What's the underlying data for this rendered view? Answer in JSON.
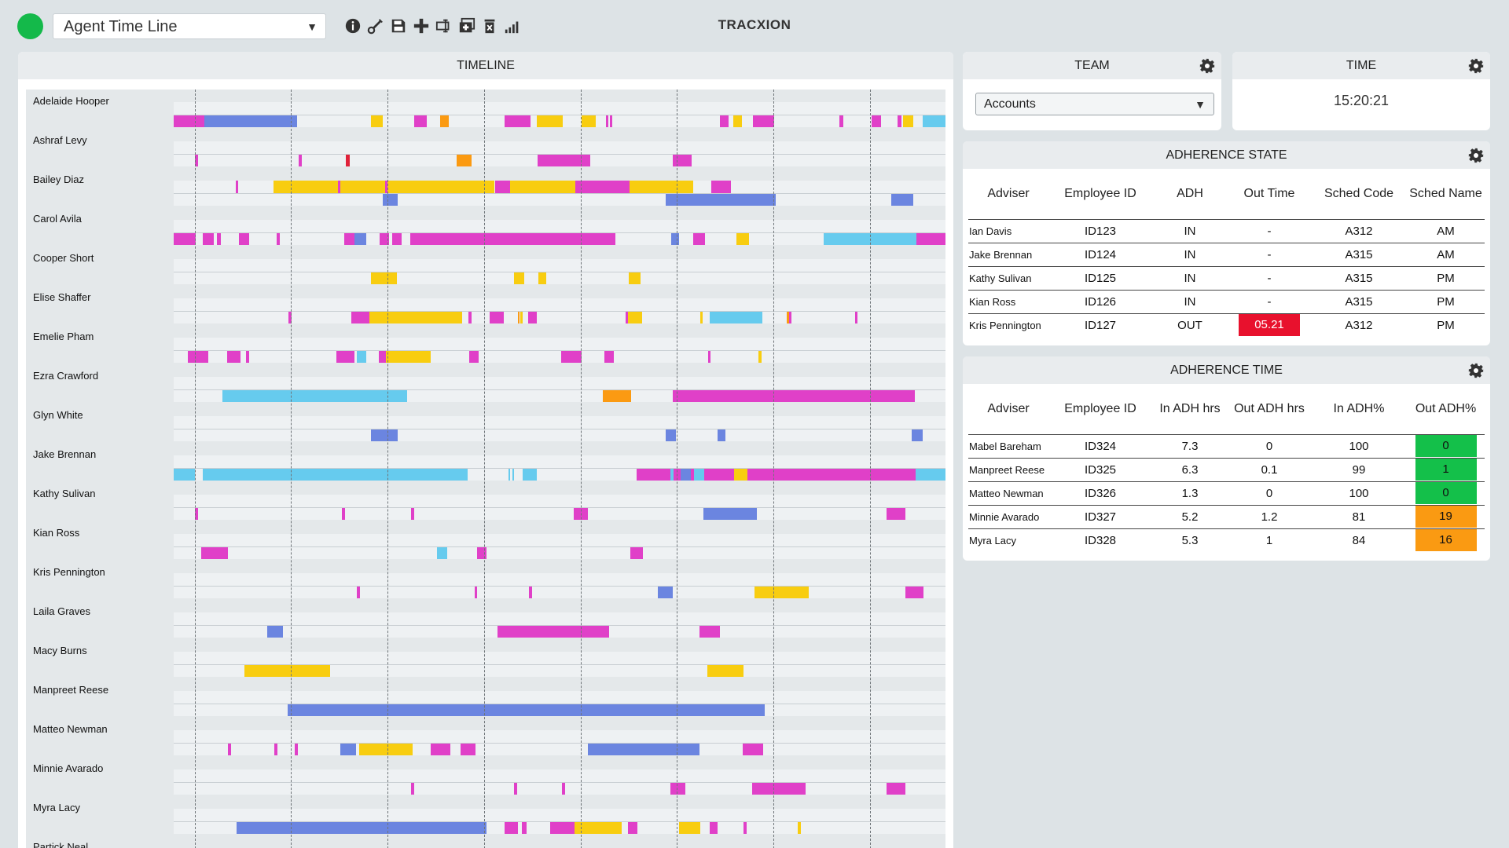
{
  "toolbar": {
    "view_selected": "Agent Time Line",
    "icons": [
      "info-icon",
      "edit-icon",
      "save-icon",
      "add-icon",
      "rename-icon",
      "duplicate-icon",
      "delete-icon",
      "signal-icon"
    ]
  },
  "brand": "TRACXION",
  "colors": {
    "m": "#e040c8",
    "b": "#6b85e0",
    "y": "#f8cd10",
    "o": "#fb9a12",
    "c": "#66cbee",
    "r": "#e0223a",
    "green_status": "#14b94a",
    "adh_red": "#e8112d",
    "adh_green": "#14c04a",
    "adh_orange": "#fa9a12"
  },
  "timeline": {
    "title": "TIMELINE",
    "agents": [
      {
        "name": "Adelaide Hooper",
        "t1": [],
        "t2": [
          [
            0,
            0.04,
            "m"
          ],
          [
            0.04,
            0.16,
            "b"
          ],
          [
            0.256,
            0.271,
            "y"
          ],
          [
            0.312,
            0.328,
            "m"
          ],
          [
            0.345,
            0.356,
            "o"
          ],
          [
            0.429,
            0.462,
            "m"
          ],
          [
            0.47,
            0.504,
            "y"
          ],
          [
            0.529,
            0.547,
            "y"
          ],
          [
            0.56,
            0.563,
            "m"
          ],
          [
            0.565,
            0.568,
            "m"
          ],
          [
            0.708,
            0.719,
            "m"
          ],
          [
            0.725,
            0.736,
            "y"
          ],
          [
            0.75,
            0.778,
            "m"
          ],
          [
            0.863,
            0.868,
            "m"
          ],
          [
            0.904,
            0.916,
            "m"
          ],
          [
            0.938,
            0.943,
            "m"
          ],
          [
            0.945,
            0.958,
            "y"
          ],
          [
            0.97,
            1.0,
            "c"
          ]
        ]
      },
      {
        "name": "Ashraf Levy",
        "t1": [],
        "t2": [
          [
            0.028,
            0.032,
            "m"
          ],
          [
            0.162,
            0.166,
            "m"
          ],
          [
            0.223,
            0.228,
            "r"
          ],
          [
            0.367,
            0.386,
            "o"
          ],
          [
            0.471,
            0.54,
            "m"
          ],
          [
            0.647,
            0.671,
            "m"
          ]
        ]
      },
      {
        "name": "Bailey Diaz",
        "t1": [
          [
            0.08,
            0.084,
            "m"
          ],
          [
            0.129,
            0.213,
            "y"
          ],
          [
            0.213,
            0.216,
            "m"
          ],
          [
            0.216,
            0.274,
            "y"
          ],
          [
            0.274,
            0.277,
            "m"
          ],
          [
            0.277,
            0.416,
            "y"
          ],
          [
            0.416,
            0.436,
            "m"
          ],
          [
            0.436,
            0.52,
            "y"
          ],
          [
            0.52,
            0.591,
            "m"
          ],
          [
            0.591,
            0.673,
            "y"
          ],
          [
            0.697,
            0.722,
            "m"
          ]
        ],
        "t2": [
          [
            0.271,
            0.29,
            "b"
          ],
          [
            0.637,
            0.78,
            "b"
          ],
          [
            0.93,
            0.958,
            "b"
          ]
        ]
      },
      {
        "name": "Carol Avila",
        "t1": [],
        "t2": [
          [
            0,
            0.029,
            "m"
          ],
          [
            0.038,
            0.052,
            "m"
          ],
          [
            0.056,
            0.061,
            "m"
          ],
          [
            0.085,
            0.098,
            "m"
          ],
          [
            0.133,
            0.137,
            "m"
          ],
          [
            0.221,
            0.234,
            "m"
          ],
          [
            0.234,
            0.25,
            "b"
          ],
          [
            0.267,
            0.279,
            "m"
          ],
          [
            0.283,
            0.295,
            "m"
          ],
          [
            0.307,
            0.572,
            "m"
          ],
          [
            0.645,
            0.655,
            "b"
          ],
          [
            0.673,
            0.688,
            "m"
          ],
          [
            0.729,
            0.745,
            "y"
          ],
          [
            0.842,
            0.962,
            "c"
          ],
          [
            0.962,
            1.0,
            "m"
          ]
        ]
      },
      {
        "name": "Cooper Short",
        "t1": [],
        "t2": [
          [
            0.256,
            0.289,
            "y"
          ],
          [
            0.441,
            0.454,
            "y"
          ],
          [
            0.473,
            0.483,
            "y"
          ],
          [
            0.59,
            0.605,
            "y"
          ]
        ]
      },
      {
        "name": "Elise Shaffer",
        "t1": [],
        "t2": [
          [
            0.149,
            0.153,
            "m"
          ],
          [
            0.23,
            0.254,
            "m"
          ],
          [
            0.254,
            0.374,
            "y"
          ],
          [
            0.382,
            0.386,
            "m"
          ],
          [
            0.409,
            0.428,
            "m"
          ],
          [
            0.446,
            0.448,
            "o"
          ],
          [
            0.449,
            0.452,
            "y"
          ],
          [
            0.459,
            0.47,
            "m"
          ],
          [
            0.586,
            0.589,
            "m"
          ],
          [
            0.589,
            0.607,
            "y"
          ],
          [
            0.682,
            0.685,
            "y"
          ],
          [
            0.695,
            0.763,
            "c"
          ],
          [
            0.794,
            0.797,
            "o"
          ],
          [
            0.797,
            0.8,
            "m"
          ],
          [
            0.883,
            0.886,
            "m"
          ]
        ]
      },
      {
        "name": "Emelie Pham",
        "t1": [],
        "t2": [
          [
            0.018,
            0.045,
            "m"
          ],
          [
            0.069,
            0.087,
            "m"
          ],
          [
            0.094,
            0.098,
            "m"
          ],
          [
            0.211,
            0.234,
            "m"
          ],
          [
            0.237,
            0.249,
            "c"
          ],
          [
            0.266,
            0.275,
            "m"
          ],
          [
            0.275,
            0.333,
            "y"
          ],
          [
            0.383,
            0.395,
            "m"
          ],
          [
            0.502,
            0.529,
            "m"
          ],
          [
            0.558,
            0.57,
            "m"
          ],
          [
            0.692,
            0.696,
            "m"
          ],
          [
            0.758,
            0.762,
            "y"
          ]
        ]
      },
      {
        "name": "Ezra Crawford",
        "t1": [],
        "t2": [
          [
            0.063,
            0.302,
            "c"
          ],
          [
            0.556,
            0.593,
            "o"
          ],
          [
            0.647,
            0.96,
            "m"
          ]
        ]
      },
      {
        "name": "Glyn White",
        "t1": [],
        "t2": [
          [
            0.256,
            0.29,
            "b"
          ],
          [
            0.637,
            0.651,
            "b"
          ],
          [
            0.705,
            0.715,
            "b"
          ],
          [
            0.956,
            0.97,
            "b"
          ]
        ]
      },
      {
        "name": "Jake Brennan",
        "t1": [],
        "t2": [
          [
            0,
            0.028,
            "c"
          ],
          [
            0.038,
            0.381,
            "c"
          ],
          [
            0.434,
            0.436,
            "c"
          ],
          [
            0.439,
            0.441,
            "c"
          ],
          [
            0.452,
            0.47,
            "c"
          ],
          [
            0.6,
            0.644,
            "m"
          ],
          [
            0.644,
            0.648,
            "c"
          ],
          [
            0.648,
            0.657,
            "m"
          ],
          [
            0.657,
            0.67,
            "b"
          ],
          [
            0.67,
            0.674,
            "m"
          ],
          [
            0.674,
            0.687,
            "c"
          ],
          [
            0.687,
            0.726,
            "m"
          ],
          [
            0.726,
            0.743,
            "y"
          ],
          [
            0.743,
            0.961,
            "m"
          ],
          [
            0.961,
            1.0,
            "c"
          ]
        ]
      },
      {
        "name": "Kathy Sulivan",
        "t1": [],
        "t2": [
          [
            0.028,
            0.032,
            "m"
          ],
          [
            0.218,
            0.222,
            "m"
          ],
          [
            0.308,
            0.312,
            "m"
          ],
          [
            0.518,
            0.537,
            "m"
          ],
          [
            0.686,
            0.756,
            "b"
          ],
          [
            0.924,
            0.948,
            "m"
          ]
        ]
      },
      {
        "name": "Kian Ross",
        "t1": [],
        "t2": [
          [
            0.036,
            0.07,
            "m"
          ],
          [
            0.341,
            0.354,
            "c"
          ],
          [
            0.393,
            0.405,
            "m"
          ],
          [
            0.592,
            0.608,
            "m"
          ]
        ]
      },
      {
        "name": "Kris Pennington",
        "t1": [],
        "t2": [
          [
            0.237,
            0.241,
            "m"
          ],
          [
            0.39,
            0.393,
            "m"
          ],
          [
            0.46,
            0.464,
            "m"
          ],
          [
            0.627,
            0.647,
            "b"
          ],
          [
            0.753,
            0.823,
            "y"
          ],
          [
            0.948,
            0.972,
            "m"
          ]
        ]
      },
      {
        "name": "Laila Graves",
        "t1": [],
        "t2": [
          [
            0.121,
            0.142,
            "b"
          ],
          [
            0.42,
            0.564,
            "m"
          ],
          [
            0.681,
            0.708,
            "m"
          ]
        ]
      },
      {
        "name": "Macy Burns",
        "t1": [],
        "t2": [
          [
            0.092,
            0.203,
            "y"
          ],
          [
            0.691,
            0.738,
            "y"
          ]
        ]
      },
      {
        "name": "Manpreet Reese",
        "t1": [],
        "t2": [
          [
            0.148,
            0.766,
            "b"
          ]
        ]
      },
      {
        "name": "Matteo Newman",
        "t1": [],
        "t2": [
          [
            0.07,
            0.074,
            "m"
          ],
          [
            0.13,
            0.134,
            "m"
          ],
          [
            0.157,
            0.161,
            "m"
          ],
          [
            0.216,
            0.236,
            "b"
          ],
          [
            0.24,
            0.31,
            "y"
          ],
          [
            0.333,
            0.358,
            "m"
          ],
          [
            0.372,
            0.391,
            "m"
          ],
          [
            0.537,
            0.681,
            "b"
          ],
          [
            0.737,
            0.764,
            "m"
          ]
        ]
      },
      {
        "name": "Minnie Avarado",
        "t1": [],
        "t2": [
          [
            0.308,
            0.312,
            "m"
          ],
          [
            0.441,
            0.445,
            "m"
          ],
          [
            0.503,
            0.507,
            "m"
          ],
          [
            0.644,
            0.663,
            "m"
          ],
          [
            0.749,
            0.819,
            "m"
          ],
          [
            0.924,
            0.948,
            "m"
          ]
        ]
      },
      {
        "name": "Myra Lacy",
        "t1": [],
        "t2": [
          [
            0.081,
            0.405,
            "b"
          ],
          [
            0.429,
            0.446,
            "m"
          ],
          [
            0.451,
            0.457,
            "m"
          ],
          [
            0.488,
            0.519,
            "m"
          ],
          [
            0.519,
            0.58,
            "y"
          ],
          [
            0.589,
            0.601,
            "m"
          ],
          [
            0.655,
            0.682,
            "y"
          ],
          [
            0.694,
            0.705,
            "m"
          ],
          [
            0.738,
            0.742,
            "m"
          ],
          [
            0.809,
            0.813,
            "y"
          ]
        ]
      },
      {
        "name": "Partick Neal",
        "t1": [],
        "t2": []
      }
    ]
  },
  "team": {
    "title": "TEAM",
    "selected": "Accounts"
  },
  "time": {
    "title": "TIME",
    "clock": "15:20:21"
  },
  "adherence_state": {
    "title": "ADHERENCE STATE",
    "headers": [
      "Adviser",
      "Employee ID",
      "ADH",
      "Out Time",
      "Sched Code",
      "Sched Name"
    ],
    "rows": [
      {
        "adviser": "Ian Davis",
        "id": "ID123",
        "adh": "IN",
        "out_time": "-",
        "code": "A312",
        "name": "AM",
        "flag": ""
      },
      {
        "adviser": "Jake Brennan",
        "id": "ID124",
        "adh": "IN",
        "out_time": "-",
        "code": "A315",
        "name": "AM",
        "flag": ""
      },
      {
        "adviser": "Kathy Sulivan",
        "id": "ID125",
        "adh": "IN",
        "out_time": "-",
        "code": "A315",
        "name": "PM",
        "flag": ""
      },
      {
        "adviser": "Kian Ross",
        "id": "ID126",
        "adh": "IN",
        "out_time": "-",
        "code": "A315",
        "name": "PM",
        "flag": ""
      },
      {
        "adviser": "Kris Pennington",
        "id": "ID127",
        "adh": "OUT",
        "out_time": "05.21",
        "code": "A312",
        "name": "PM",
        "flag": "red"
      }
    ]
  },
  "adherence_time": {
    "title": "ADHERENCE TIME",
    "headers": [
      "Adviser",
      "Employee ID",
      "In ADH hrs",
      "Out ADH hrs",
      "In ADH%",
      "Out ADH%"
    ],
    "rows": [
      {
        "adviser": "Mabel Bareham",
        "id": "ID324",
        "in_hrs": "7.3",
        "out_hrs": "0",
        "in_pct": "100",
        "out_pct": "0",
        "flag": "green"
      },
      {
        "adviser": "Manpreet Reese",
        "id": "ID325",
        "in_hrs": "6.3",
        "out_hrs": "0.1",
        "in_pct": "99",
        "out_pct": "1",
        "flag": "green"
      },
      {
        "adviser": "Matteo Newman",
        "id": "ID326",
        "in_hrs": "1.3",
        "out_hrs": "0",
        "in_pct": "100",
        "out_pct": "0",
        "flag": "green"
      },
      {
        "adviser": "Minnie Avarado",
        "id": "ID327",
        "in_hrs": "5.2",
        "out_hrs": "1.2",
        "in_pct": "81",
        "out_pct": "19",
        "flag": "orange"
      },
      {
        "adviser": "Myra Lacy",
        "id": "ID328",
        "in_hrs": "5.3",
        "out_hrs": "1",
        "in_pct": "84",
        "out_pct": "16",
        "flag": "orange"
      }
    ]
  }
}
